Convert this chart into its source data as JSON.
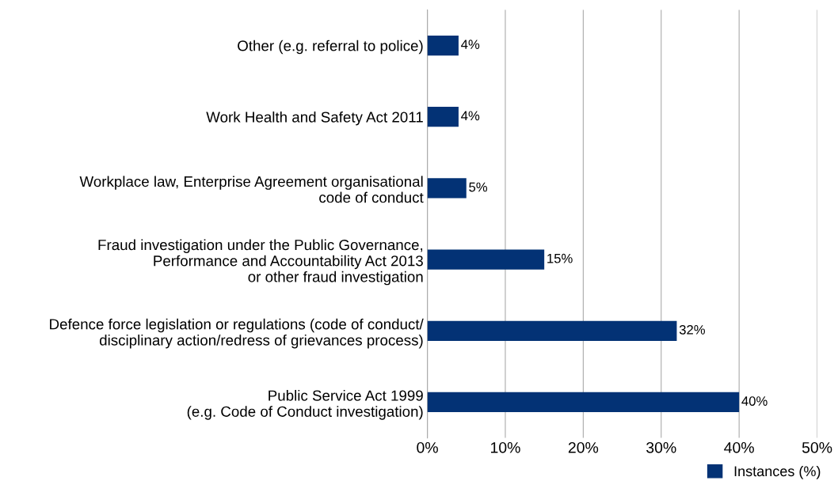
{
  "chart_data": {
    "type": "bar",
    "orientation": "horizontal",
    "categories": [
      "Other (e.g. referral to police)",
      "Work Health and Safety Act 2011",
      "Workplace law, Enterprise Agreement organisational\ncode of conduct",
      "Fraud investigation under the Public Governance,\nPerformance and Accountability Act 2013\nor other fraud investigation",
      "Defence force legislation or regulations (code of conduct/\ndisciplinary action/redress of grievances process)",
      "Public Service Act 1999\n(e.g. Code of Conduct investigation)"
    ],
    "series": [
      {
        "name": "Instances (%)",
        "color": "#033275",
        "values": [
          4,
          4,
          5,
          15,
          32,
          40
        ],
        "value_labels": [
          "4%",
          "4%",
          "5%",
          "15%",
          "32%",
          "40%"
        ]
      }
    ],
    "xlim": [
      0,
      50
    ],
    "xticks": [
      {
        "value": 0,
        "label": "0%"
      },
      {
        "value": 10,
        "label": "10%"
      },
      {
        "value": 20,
        "label": "20%"
      },
      {
        "value": 30,
        "label": "30%"
      },
      {
        "value": 40,
        "label": "40%"
      },
      {
        "value": 50,
        "label": "50%"
      }
    ],
    "grid": "x",
    "legend": "bottom right"
  }
}
